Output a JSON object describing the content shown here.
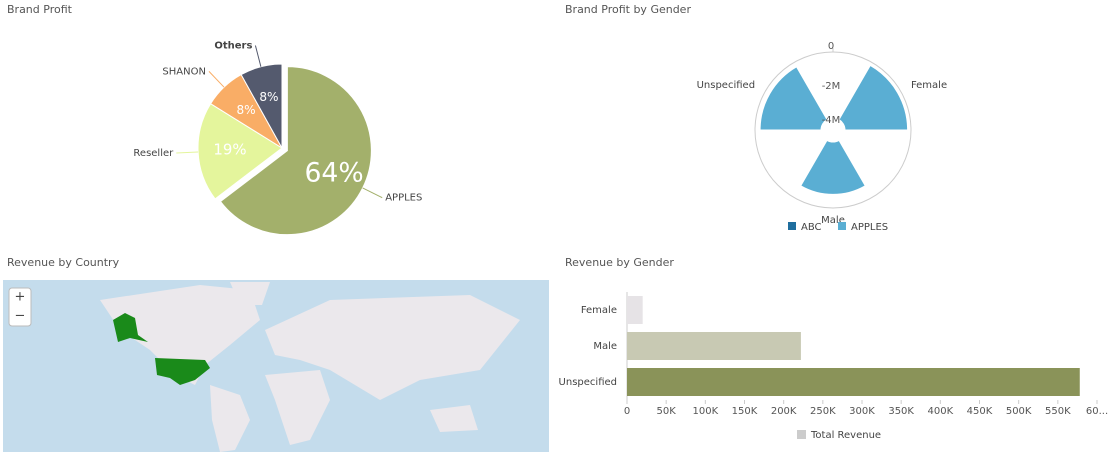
{
  "chart_data": [
    {
      "type": "pie",
      "title": "Brand Profit",
      "categories": [
        "APPLES",
        "Reseller",
        "SHANON",
        "Others"
      ],
      "values": [
        64,
        19,
        8,
        8
      ],
      "value_labels": [
        "64%",
        "19%",
        "8%",
        "8%"
      ],
      "colors": [
        "#a3b06b",
        "#e4f59c",
        "#f9ad66",
        "#545a6e"
      ]
    },
    {
      "type": "polar",
      "title": "Brand Profit by Gender",
      "categories": [
        "Female",
        "Male",
        "Unspecified"
      ],
      "series": [
        {
          "name": "ABC",
          "color": "#1f6e9e",
          "values": [
            null,
            null,
            null
          ]
        },
        {
          "name": "APPLES",
          "color": "#5aaed3",
          "values": [
            -200000,
            -800000,
            -300000
          ]
        }
      ],
      "ylim": [
        -4600000,
        0
      ],
      "yticks": [
        0,
        {
          "value": -2000000,
          "label": "-2M"
        },
        {
          "value": -4000000,
          "label": "-4M"
        }
      ]
    },
    {
      "type": "map",
      "title": "Revenue by Country",
      "zoom_in": "+",
      "zoom_out": "−"
    },
    {
      "type": "hbar",
      "title": "Revenue by Gender",
      "categories": [
        "Female",
        "Male",
        "Unspecified"
      ],
      "series": [
        {
          "name": "Total Revenue",
          "color": "#cccccc",
          "colors": [
            "#e6e3e6",
            "#c8c9b3",
            "#8a9359"
          ],
          "values": [
            20000,
            222000,
            578000
          ]
        }
      ],
      "xlim": [
        0,
        600000
      ],
      "xticks": [
        0,
        {
          "value": 50000,
          "label": "50K"
        },
        {
          "value": 100000,
          "label": "100K"
        },
        {
          "value": 150000,
          "label": "150K"
        },
        {
          "value": 200000,
          "label": "200K"
        },
        {
          "value": 250000,
          "label": "250K"
        },
        {
          "value": 300000,
          "label": "300K"
        },
        {
          "value": 350000,
          "label": "350K"
        },
        {
          "value": 400000,
          "label": "400K"
        },
        {
          "value": 450000,
          "label": "450K"
        },
        {
          "value": 500000,
          "label": "500K"
        },
        {
          "value": 550000,
          "label": "550K"
        },
        {
          "value": 600000,
          "label": "60..."
        }
      ]
    }
  ]
}
